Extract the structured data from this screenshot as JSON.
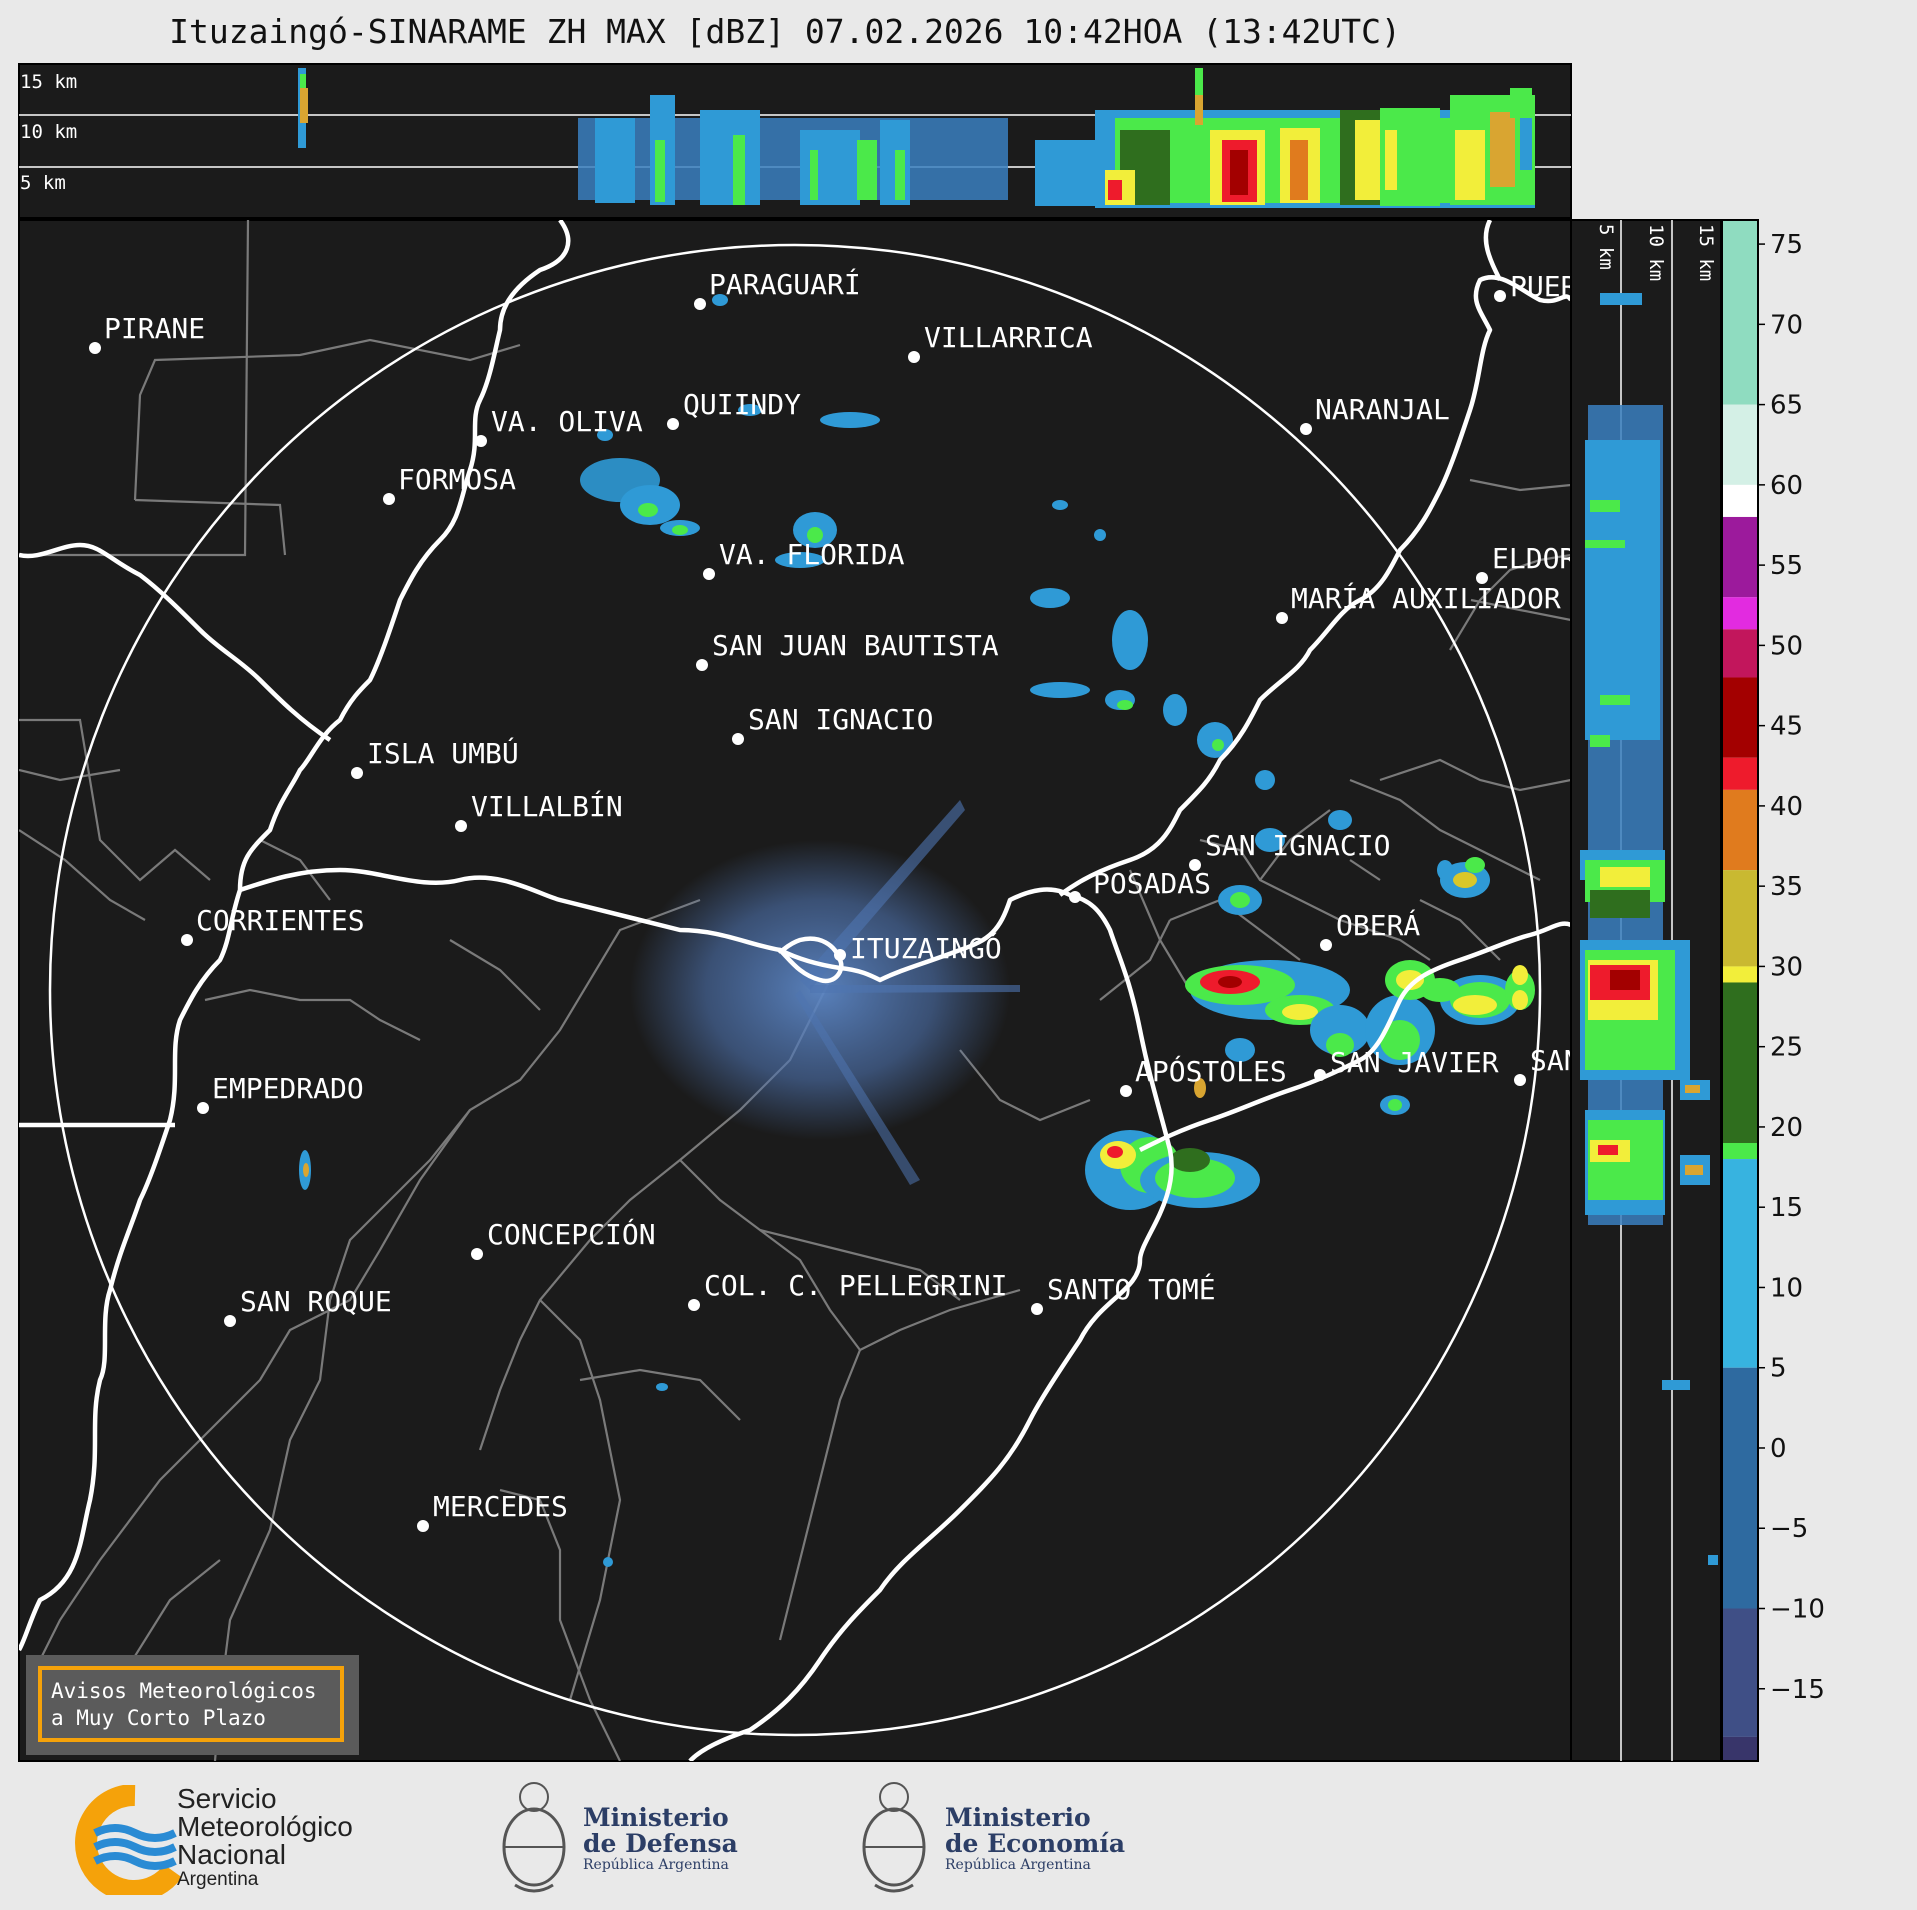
{
  "title": "Ituzaingó-SINARAME ZH MAX [dBZ] 07.02.2026 10:42HOA (13:42UTC)",
  "profile_top": {
    "altitude_labels": [
      "15 km",
      "10 km",
      "5 km"
    ]
  },
  "profile_right": {
    "altitude_labels": [
      "5 km",
      "10 km",
      "15 km"
    ]
  },
  "colorbar": {
    "ticks": [
      "75",
      "70",
      "65",
      "60",
      "55",
      "50",
      "45",
      "40",
      "35",
      "30",
      "25",
      "20",
      "15",
      "10",
      "5",
      "0",
      "−5",
      "−10",
      "−15"
    ],
    "stops": [
      {
        "dbz": 75,
        "color": "#8fdcc0"
      },
      {
        "dbz": 65,
        "color": "#d4f0e6"
      },
      {
        "dbz": 60,
        "color": "#ffffff"
      },
      {
        "dbz": 58,
        "color": "#9c1a9c"
      },
      {
        "dbz": 53,
        "color": "#e22be0"
      },
      {
        "dbz": 51,
        "color": "#c2165c"
      },
      {
        "dbz": 48,
        "color": "#a30000"
      },
      {
        "dbz": 43,
        "color": "#ee1b2c"
      },
      {
        "dbz": 41,
        "color": "#e07b1e"
      },
      {
        "dbz": 36,
        "color": "#c9b931"
      },
      {
        "dbz": 30,
        "color": "#f2ee3a"
      },
      {
        "dbz": 29,
        "color": "#2f6e1e"
      },
      {
        "dbz": 19,
        "color": "#4be94a"
      },
      {
        "dbz": 18,
        "color": "#37b3e0"
      },
      {
        "dbz": 5,
        "color": "#2e6aa0"
      },
      {
        "dbz": -10,
        "color": "#3f4f86"
      },
      {
        "dbz": -18,
        "color": "#38356a"
      }
    ]
  },
  "map": {
    "radar_site": "ITUZAINGÓ",
    "cities": [
      "PIRANE",
      "PARAGUARÍ",
      "VILLARRICA",
      "QUIINDY",
      "VA. OLIVA",
      "NARANJAL",
      "FORMOSA",
      "PUER",
      "VA. FLORIDA",
      "ELDOR",
      "MARÍA AUXILIADOR",
      "SAN JUAN BAUTISTA",
      "SAN IGNACIO",
      "ISLA UMBÚ",
      "VILLALBÍN",
      "SAN IGNACIO",
      "POSADAS",
      "CORRIENTES",
      "OBERÁ",
      "APÓSTOLES",
      "SAN JAVIER",
      "SAN",
      "EMPEDRADO",
      "CONCEPCIÓN",
      "COL. C. PELLEGRINI",
      "SANTO TOMÉ",
      "SAN ROQUE",
      "MERCEDES"
    ]
  },
  "badge": {
    "line1": "Avisos Meteorológicos",
    "line2": "a Muy Corto Plazo"
  },
  "logos": {
    "smn": [
      "Servicio",
      "Meteorológico",
      "Nacional",
      "Argentina"
    ],
    "defensa": [
      "Ministerio",
      "de Defensa",
      "República Argentina"
    ],
    "economia": [
      "Ministerio",
      "de Economía",
      "República Argentina"
    ]
  }
}
